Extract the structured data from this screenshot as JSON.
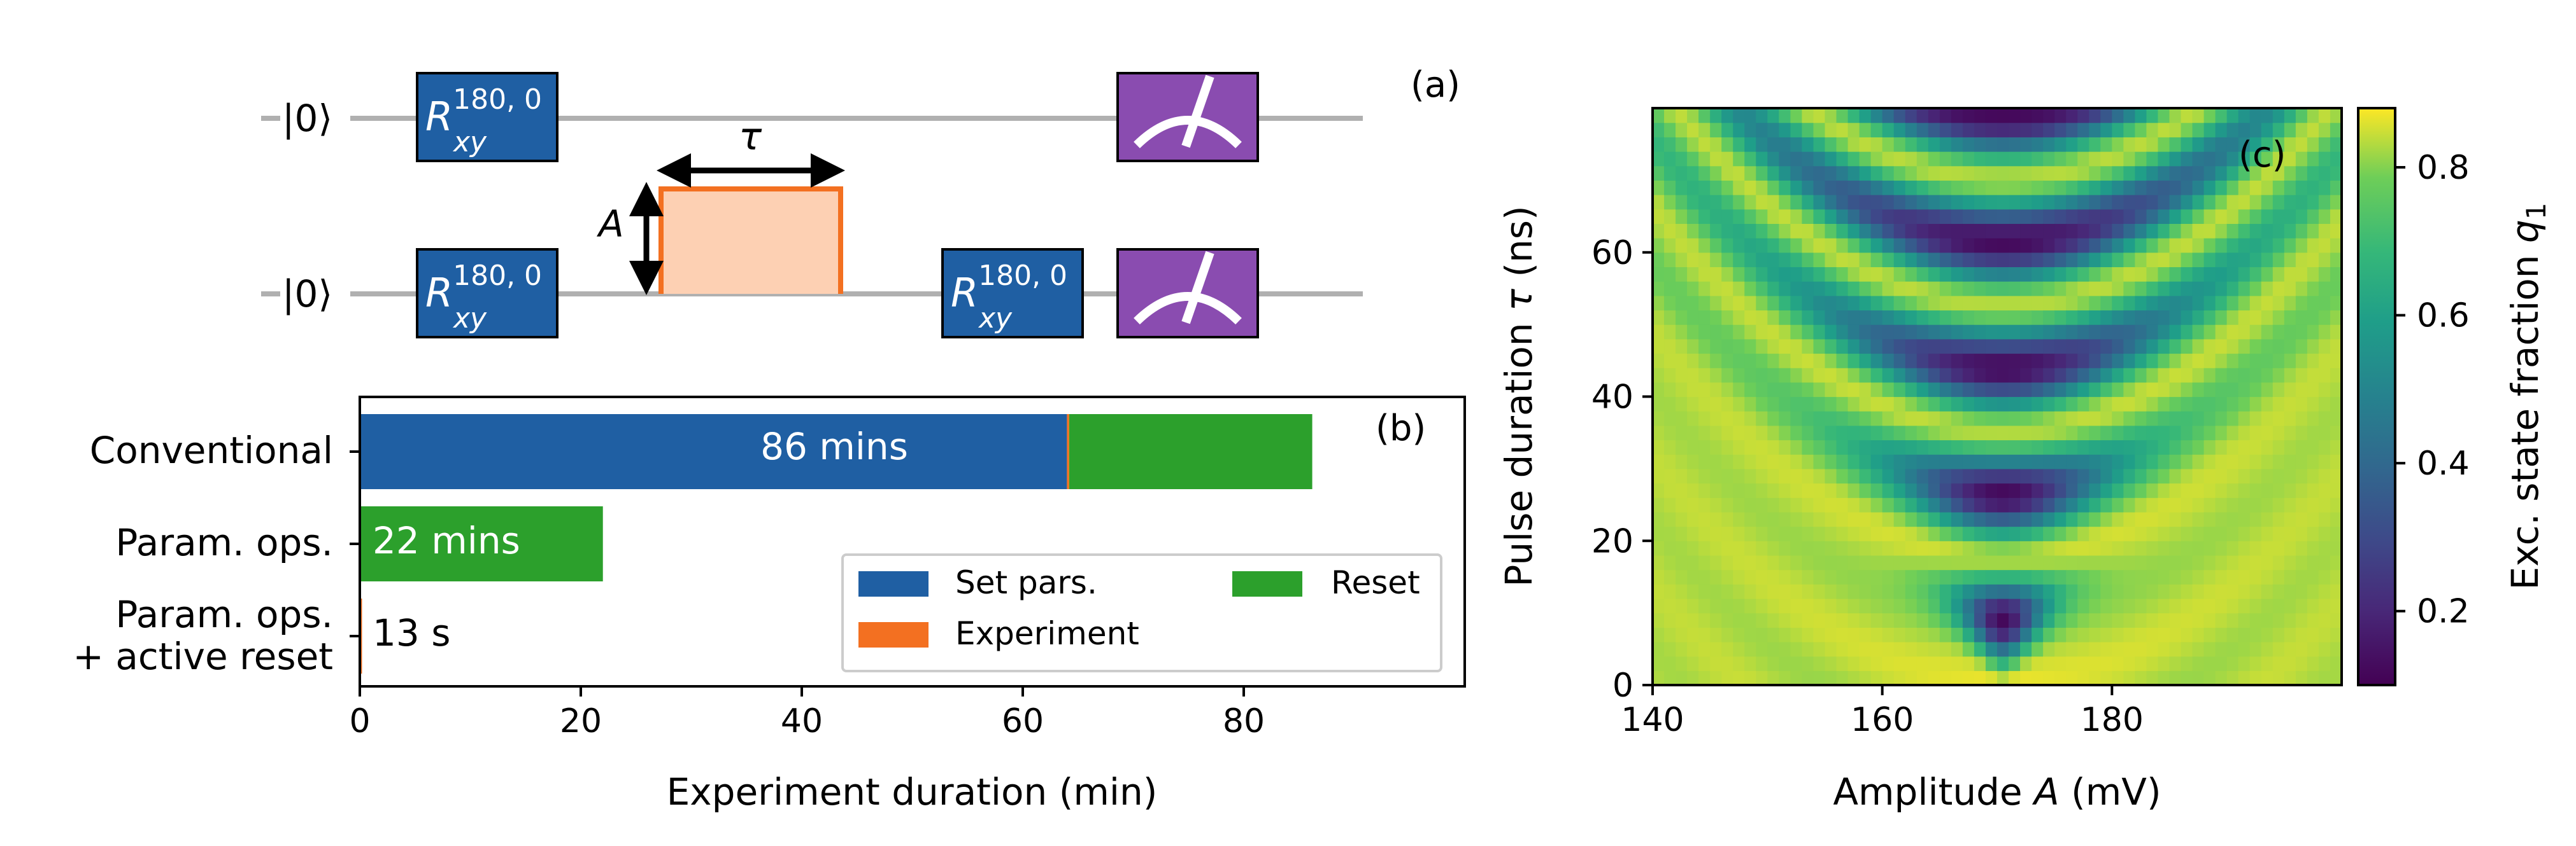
{
  "circuit": {
    "panel_label": "(a)",
    "ket_top": "|0⟩",
    "ket_bottom": "|0⟩",
    "gate_symbol": "R",
    "gate_sub": "xy",
    "gate_sup": "180, 0",
    "tau_label": "τ",
    "amp_label": "A",
    "colors": {
      "gate": "#1f5fa3",
      "measure": "#8a4cb0",
      "pulse_fill": "#fdd0b3",
      "pulse_edge": "#f37021",
      "wire": "#b0b0b0"
    },
    "icons": [
      "gate-box",
      "measurement-meter-icon",
      "double-arrow-icon"
    ]
  },
  "bars": {
    "panel_label": "(b)",
    "xlabel": "Experiment duration (min)",
    "categories": [
      "Conventional",
      "Param. ops.",
      "Param. ops.\n+ active reset"
    ],
    "xticks": [
      0,
      20,
      40,
      60,
      80
    ],
    "xlim": [
      0,
      100
    ],
    "legend": [
      "Set pars.",
      "Experiment",
      "Reset"
    ],
    "legend_placement": "lower-right",
    "colors": {
      "set_pars": "#1f5fa3",
      "experiment": "#f37021",
      "reset": "#2ca02c"
    },
    "annotations": [
      "86 mins",
      "22 mins",
      "13 s"
    ]
  },
  "heatmap": {
    "panel_label": "(c)",
    "xlabel_pre": "Amplitude ",
    "xlabel_var": "A",
    "xlabel_post": " (mV)",
    "ylabel_pre": "Pulse duration ",
    "ylabel_var": "τ",
    "ylabel_post": " (ns)",
    "xticks": [
      140,
      160,
      180
    ],
    "yticks": [
      0,
      20,
      40,
      60
    ],
    "xlim": [
      140,
      200
    ],
    "ylim": [
      0,
      80
    ],
    "colorbar_label_pre": "Exc. state fraction ",
    "colorbar_label_var": "q",
    "colorbar_label_sub": "1",
    "colorbar_ticks": [
      0.2,
      0.4,
      0.6,
      0.8
    ],
    "colorbar_range": [
      0.1,
      0.88
    ],
    "colormap": "viridis"
  },
  "chart_data": [
    {
      "type": "bar",
      "orientation": "horizontal",
      "stacked": true,
      "categories": [
        "Conventional",
        "Param. ops.",
        "Param. ops. + active reset"
      ],
      "series": [
        {
          "name": "Set pars.",
          "values": [
            64,
            0,
            0
          ]
        },
        {
          "name": "Experiment",
          "values": [
            0.2,
            0,
            0.2
          ]
        },
        {
          "name": "Reset",
          "values": [
            22,
            22,
            0
          ]
        }
      ],
      "data_labels": [
        "86 mins",
        "22 mins",
        "13 s"
      ],
      "xlabel": "Experiment duration (min)",
      "xlim": [
        0,
        100
      ],
      "grid": false,
      "legend": "lower-right"
    },
    {
      "type": "heatmap",
      "xlabel": "Amplitude A (mV)",
      "ylabel": "Pulse duration τ (ns)",
      "xlim": [
        140,
        200
      ],
      "ylim": [
        0,
        80
      ],
      "x_step": 1,
      "y_step": 2,
      "colorbar_label": "Exc. state fraction q1",
      "colorbar_range": [
        0.1,
        0.88
      ],
      "model": {
        "background": 0.83,
        "center_amplitude_mV": 170.5,
        "minimum": 0.12,
        "first_dip_tau_ns": 9,
        "dip_period_ns": 17.5
      }
    }
  ]
}
